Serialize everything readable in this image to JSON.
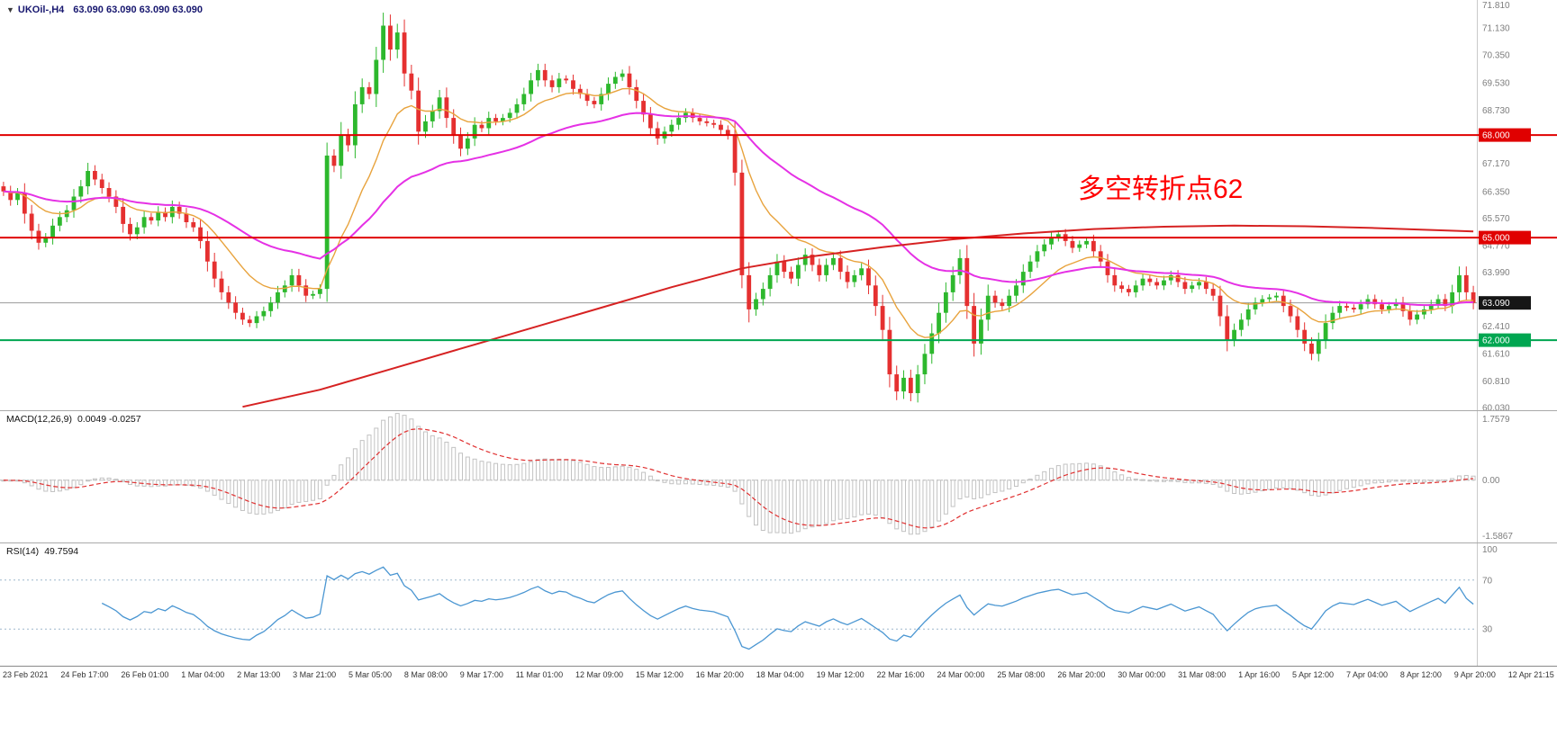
{
  "header": {
    "collapse_arrow": "▼",
    "symbol": "UKOil-,H4",
    "ohlc": "63.090 63.090 63.090 63.090"
  },
  "annotation": {
    "text": "多空转折点62",
    "color": "#ff0000"
  },
  "colors": {
    "up": "#2db82d",
    "down": "#e53030",
    "axis_text": "#7d7d7d",
    "current_price_line": "#9a9a9a",
    "current_tag_bg": "#161616"
  },
  "chart_data": {
    "type": "candlestick",
    "title": "UKOil-,H4",
    "ylim": [
      59.95,
      71.95
    ],
    "first_open": 66.5,
    "closes": [
      66.35,
      66.1,
      66.3,
      65.7,
      65.2,
      64.85,
      65.0,
      65.35,
      65.6,
      65.8,
      66.2,
      66.5,
      66.95,
      66.7,
      66.45,
      66.2,
      65.9,
      65.4,
      65.1,
      65.3,
      65.6,
      65.5,
      65.75,
      65.6,
      65.9,
      65.7,
      65.45,
      65.3,
      64.9,
      64.3,
      63.8,
      63.4,
      63.1,
      62.8,
      62.6,
      62.5,
      62.7,
      62.85,
      63.1,
      63.4,
      63.6,
      63.9,
      63.6,
      63.3,
      63.35,
      63.5,
      67.4,
      67.1,
      68.0,
      67.7,
      68.9,
      69.4,
      69.2,
      70.2,
      71.2,
      70.5,
      71.0,
      69.8,
      69.3,
      68.1,
      68.4,
      68.7,
      69.1,
      68.5,
      68.0,
      67.6,
      67.9,
      68.3,
      68.2,
      68.5,
      68.4,
      68.5,
      68.65,
      68.9,
      69.2,
      69.6,
      69.9,
      69.6,
      69.4,
      69.65,
      69.6,
      69.35,
      69.2,
      69.0,
      68.9,
      69.2,
      69.5,
      69.7,
      69.8,
      69.4,
      69.0,
      68.6,
      68.2,
      67.9,
      68.1,
      68.3,
      68.5,
      68.65,
      68.5,
      68.4,
      68.35,
      68.3,
      68.15,
      68.0,
      66.9,
      63.9,
      62.9,
      63.2,
      63.5,
      63.9,
      64.3,
      64.0,
      63.8,
      64.2,
      64.5,
      64.2,
      63.9,
      64.2,
      64.4,
      64.0,
      63.7,
      63.9,
      64.1,
      63.6,
      63.0,
      62.3,
      61.0,
      60.5,
      60.9,
      60.45,
      61.0,
      61.6,
      62.2,
      62.8,
      63.4,
      63.9,
      64.4,
      63.0,
      61.9,
      62.6,
      63.3,
      63.1,
      63.0,
      63.3,
      63.6,
      64.0,
      64.3,
      64.6,
      64.8,
      65.0,
      65.1,
      64.9,
      64.7,
      64.8,
      64.9,
      64.6,
      64.3,
      63.9,
      63.6,
      63.5,
      63.4,
      63.6,
      63.8,
      63.7,
      63.6,
      63.75,
      63.9,
      63.7,
      63.5,
      63.6,
      63.7,
      63.5,
      63.3,
      62.7,
      62.0,
      62.3,
      62.6,
      62.9,
      63.1,
      63.2,
      63.25,
      63.3,
      63.0,
      62.7,
      62.3,
      61.9,
      61.6,
      62.0,
      62.5,
      62.8,
      63.0,
      62.95,
      62.9,
      63.05,
      63.2,
      63.05,
      62.9,
      63.0,
      63.1,
      62.85,
      62.6,
      62.75,
      62.9,
      63.05,
      63.2,
      63.0,
      63.4,
      63.9,
      63.4,
      63.09
    ],
    "overlays": {
      "ma_fast": {
        "type": "ema",
        "period": 13,
        "color": "#e8a33d"
      },
      "ma_mid": {
        "type": "ema",
        "period": 40,
        "color": "#e531e5"
      },
      "ma_slow": {
        "color": "#d62222",
        "points": [
          [
            34,
            60.05
          ],
          [
            45,
            60.55
          ],
          [
            55,
            61.15
          ],
          [
            65,
            61.75
          ],
          [
            75,
            62.35
          ],
          [
            85,
            62.95
          ],
          [
            95,
            63.55
          ],
          [
            105,
            64.1
          ],
          [
            115,
            64.45
          ],
          [
            125,
            64.72
          ],
          [
            135,
            64.95
          ],
          [
            145,
            65.12
          ],
          [
            155,
            65.25
          ],
          [
            165,
            65.32
          ],
          [
            175,
            65.35
          ],
          [
            185,
            65.33
          ],
          [
            195,
            65.28
          ],
          [
            209,
            65.18
          ]
        ]
      }
    },
    "hlines": [
      {
        "price": 68.0,
        "label": "68.000",
        "color": "#e00000"
      },
      {
        "price": 65.0,
        "label": "65.000",
        "color": "#e00000"
      },
      {
        "price": 62.0,
        "label": "62.000",
        "color": "#00a651"
      }
    ],
    "current_price": {
      "value": 63.09,
      "label": "63.090"
    },
    "price_axis_labels": [
      71.81,
      71.13,
      70.35,
      69.53,
      68.73,
      67.17,
      66.35,
      65.57,
      64.77,
      63.99,
      62.41,
      61.61,
      60.81,
      60.03
    ],
    "subcharts": [
      {
        "type": "macd",
        "label": "MACD(12,26,9)",
        "value_text": "0.0049 -0.0257",
        "fast": 12,
        "slow": 26,
        "signal": 9,
        "ylim": [
          -1.5867,
          1.7579
        ],
        "axis_labels": [
          "1.7579",
          "0.00",
          "-1.5867"
        ],
        "histogram_color": "#c2c2c2",
        "signal_color": "#e03030"
      },
      {
        "type": "rsi",
        "label": "RSI(14)",
        "value_text": "49.7594",
        "period": 14,
        "ylim": [
          0,
          100
        ],
        "levels": [
          70,
          30
        ],
        "axis_labels": [
          "100",
          "70",
          "30"
        ],
        "line_color": "#4a96d2",
        "level_color": "#9db7cc"
      }
    ],
    "x_labels": [
      "23 Feb 2021",
      "24 Feb 17:00",
      "26 Feb 01:00",
      "1 Mar 04:00",
      "2 Mar 13:00",
      "3 Mar 21:00",
      "5 Mar 05:00",
      "8 Mar 08:00",
      "9 Mar 17:00",
      "11 Mar 01:00",
      "12 Mar 09:00",
      "15 Mar 12:00",
      "16 Mar 20:00",
      "18 Mar 04:00",
      "19 Mar 12:00",
      "22 Mar 16:00",
      "24 Mar 00:00",
      "25 Mar 08:00",
      "26 Mar 20:00",
      "30 Mar 00:00",
      "31 Mar 08:00",
      "1 Apr 16:00",
      "5 Apr 12:00",
      "7 Apr 04:00",
      "8 Apr 12:00",
      "9 Apr 20:00",
      "12 Apr 21:15"
    ]
  }
}
